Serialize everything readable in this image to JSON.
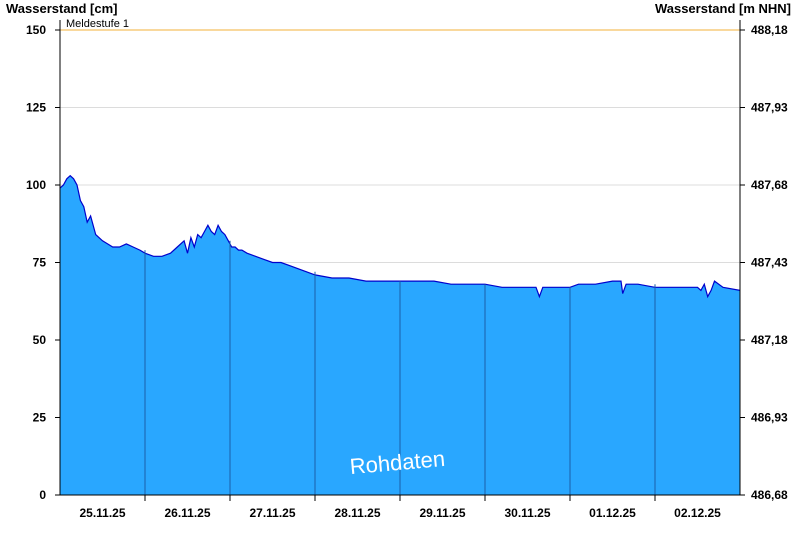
{
  "chart_data": {
    "type": "area",
    "left_axis_title": "Wasserstand [cm]",
    "right_axis_title": "Wasserstand [m NHN]",
    "y_ticks": [
      0,
      25,
      50,
      75,
      100,
      125,
      150
    ],
    "y_right_ticks": [
      "486,68",
      "486,93",
      "487,18",
      "487,43",
      "487,68",
      "487,93",
      "488,18"
    ],
    "ylim": [
      0,
      150
    ],
    "x_categories": [
      "25.11.25",
      "26.11.25",
      "27.11.25",
      "28.11.25",
      "29.11.25",
      "30.11.25",
      "01.12.25",
      "02.12.25"
    ],
    "xlim_days": [
      0,
      8
    ],
    "threshold": {
      "label": "Meldestufe 1",
      "value": 150,
      "color": "#f5c060"
    },
    "fill_color": "#29a7ff",
    "line_color": "#0000cc",
    "grid": true,
    "watermark": "Rohdaten",
    "series": [
      {
        "x": [
          0,
          0.04,
          0.08,
          0.12,
          0.16,
          0.2,
          0.24,
          0.28,
          0.32,
          0.36,
          0.42,
          0.46,
          0.5,
          0.56,
          0.62,
          0.7,
          0.78,
          0.86,
          0.94,
          1.0,
          1.1,
          1.2,
          1.3,
          1.38,
          1.46,
          1.5,
          1.54,
          1.58,
          1.62,
          1.66,
          1.7,
          1.74,
          1.78,
          1.82,
          1.86,
          1.9,
          1.94,
          1.98,
          2.02,
          2.06,
          2.1,
          2.14,
          2.2,
          2.3,
          2.4,
          2.5,
          2.6,
          2.7,
          2.8,
          2.9,
          3.0,
          3.2,
          3.4,
          3.6,
          3.8,
          4.0,
          4.2,
          4.4,
          4.6,
          4.8,
          5.0,
          5.2,
          5.4,
          5.6,
          5.64,
          5.68,
          5.72,
          5.8,
          5.9,
          6.0,
          6.1,
          6.3,
          6.5,
          6.6,
          6.62,
          6.66,
          6.7,
          6.8,
          7.0,
          7.2,
          7.4,
          7.5,
          7.54,
          7.58,
          7.62,
          7.66,
          7.7,
          7.8,
          8.0
        ],
        "y": [
          99,
          100,
          102,
          103,
          102,
          100,
          95,
          93,
          88,
          90,
          84,
          83,
          82,
          81,
          80,
          80,
          81,
          80,
          79,
          78,
          77,
          77,
          78,
          80,
          82,
          78,
          83,
          80,
          84,
          83,
          85,
          87,
          85,
          84,
          87,
          85,
          84,
          82,
          80,
          80,
          79,
          79,
          78,
          77,
          76,
          75,
          75,
          74,
          73,
          72,
          71,
          70,
          70,
          69,
          69,
          69,
          69,
          69,
          68,
          68,
          68,
          67,
          67,
          67,
          64,
          67,
          67,
          67,
          67,
          67,
          68,
          68,
          69,
          69,
          65,
          68,
          68,
          68,
          67,
          67,
          67,
          67,
          66,
          68,
          64,
          66,
          69,
          67,
          66
        ]
      }
    ]
  }
}
